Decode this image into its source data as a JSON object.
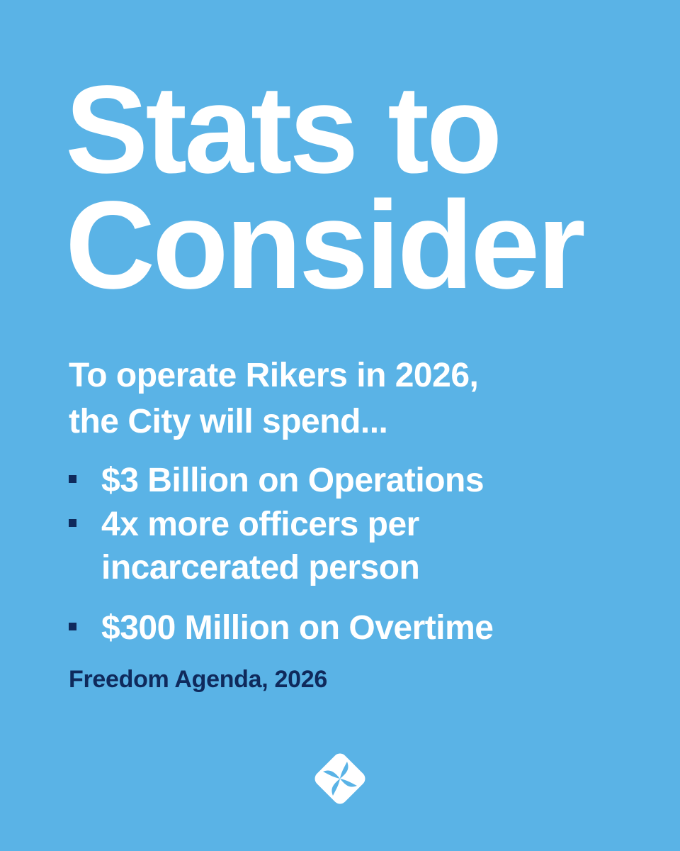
{
  "title": [
    "Stats to",
    "Consider"
  ],
  "intro": [
    "To operate Rikers in 2026,",
    "the City will spend..."
  ],
  "bullets": [
    [
      "$3 Billion on Operations"
    ],
    [
      "4x more officers per",
      "incarcerated person"
    ],
    [
      "$300 Million on Overtime"
    ]
  ],
  "source": "Freedom Agenda, 2026"
}
